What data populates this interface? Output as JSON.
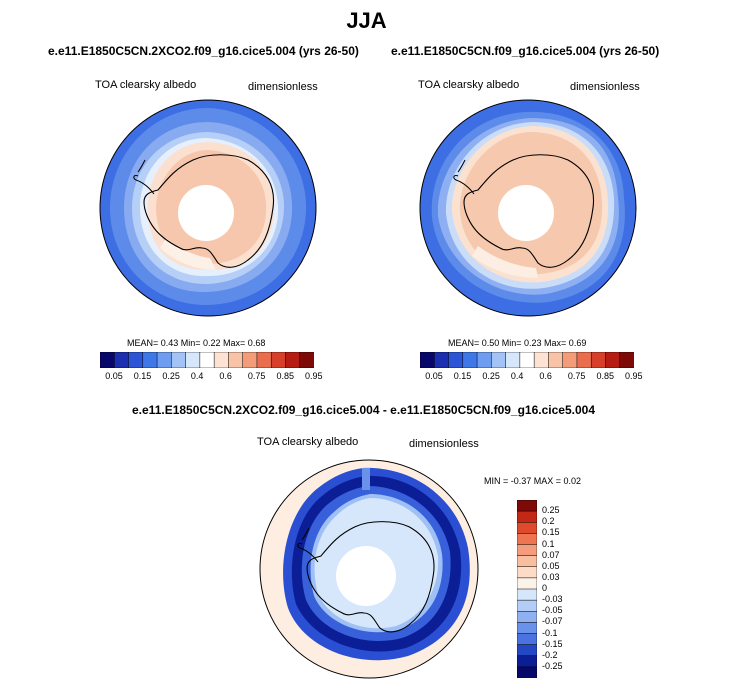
{
  "figure_title": "JJA",
  "panels": [
    {
      "title": "e.e11.E1850C5CN.2XCO2.f09_g16.cice5.004 (yrs 26-50)",
      "left_label": "TOA clearsky albedo",
      "right_label": "dimensionless",
      "stats": "MEAN=   0.43  Min=   0.22  Max=   0.68"
    },
    {
      "title": "e.e11.E1850C5CN.f09_g16.cice5.004 (yrs 26-50)",
      "left_label": "TOA clearsky albedo",
      "right_label": "dimensionless",
      "stats": "MEAN=   0.50  Min=   0.23  Max=   0.69"
    },
    {
      "title": "e.e11.E1850C5CN.2XCO2.f09_g16.cice5.004 - e.e11.E1850C5CN.f09_g16.cice5.004",
      "left_label": "TOA clearsky albedo",
      "right_label": "dimensionless",
      "stats": "MIN =  -0.37 MAX =   0.02"
    }
  ],
  "colorbar_abs": {
    "ticks": [
      "0.05",
      "0.15",
      "0.25",
      "0.4",
      "0.6",
      "0.75",
      "0.85",
      "0.95"
    ],
    "colors": [
      "#08086b",
      "#1c2fb0",
      "#2b55d6",
      "#3d78e6",
      "#6e9cf0",
      "#a3c2f6",
      "#d6e6fb",
      "#ffffff",
      "#fde3d3",
      "#f8c3a6",
      "#f39c79",
      "#ea6e4d",
      "#d6402a",
      "#b61c14",
      "#7e0a08"
    ]
  },
  "colorbar_diff": {
    "labels": [
      "0.25",
      "0.2",
      "0.15",
      "0.1",
      "0.07",
      "0.05",
      "0.03",
      "0",
      "-0.03",
      "-0.05",
      "-0.07",
      "-0.1",
      "-0.15",
      "-0.2",
      "-0.25"
    ],
    "colors": [
      "#7e0a08",
      "#c32716",
      "#e04a2c",
      "#ef7552",
      "#f59c7c",
      "#f8bea0",
      "#fcdcc6",
      "#fdf2e8",
      "#d6e6fb",
      "#b2cdf6",
      "#8fb1f1",
      "#6a92ea",
      "#4a72e0",
      "#2448c4",
      "#0c1e96",
      "#08086b"
    ]
  },
  "chart_data": [
    {
      "type": "heatmap",
      "title": "e.e11.E1850C5CN.2XCO2.f09_g16.cice5.004 (yrs 26-50)",
      "variable": "TOA clearsky albedo",
      "units": "dimensionless",
      "season": "JJA",
      "projection": "south polar stereographic",
      "mean": 0.43,
      "min": 0.22,
      "max": 0.68,
      "levels": [
        0.05,
        0.1,
        0.15,
        0.2,
        0.25,
        0.3,
        0.4,
        0.5,
        0.6,
        0.7,
        0.75,
        0.8,
        0.85,
        0.9,
        0.95
      ]
    },
    {
      "type": "heatmap",
      "title": "e.e11.E1850C5CN.f09_g16.cice5.004 (yrs 26-50)",
      "variable": "TOA clearsky albedo",
      "units": "dimensionless",
      "season": "JJA",
      "projection": "south polar stereographic",
      "mean": 0.5,
      "min": 0.23,
      "max": 0.69,
      "levels": [
        0.05,
        0.1,
        0.15,
        0.2,
        0.25,
        0.3,
        0.4,
        0.5,
        0.6,
        0.7,
        0.75,
        0.8,
        0.85,
        0.9,
        0.95
      ]
    },
    {
      "type": "heatmap",
      "title": "e.e11.E1850C5CN.2XCO2.f09_g16.cice5.004 - e.e11.E1850C5CN.f09_g16.cice5.004",
      "variable": "TOA clearsky albedo",
      "units": "dimensionless",
      "season": "JJA",
      "projection": "south polar stereographic",
      "min": -0.37,
      "max": 0.02,
      "levels": [
        -0.25,
        -0.2,
        -0.15,
        -0.1,
        -0.07,
        -0.05,
        -0.03,
        0,
        0.03,
        0.05,
        0.07,
        0.1,
        0.15,
        0.2,
        0.25
      ]
    }
  ]
}
